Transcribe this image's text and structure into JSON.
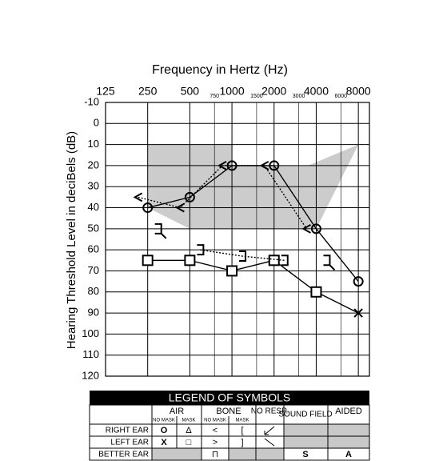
{
  "chart_data": {
    "type": "audiogram",
    "title": "Frequency in Hertz (Hz)",
    "y_label": "Hearing Threshold Level in deciBels (dB)",
    "xscale": "log",
    "xlim": [
      125,
      9600
    ],
    "xticks": [
      125,
      250,
      500,
      1000,
      2000,
      4000,
      8000
    ],
    "minor_xticks": [
      750,
      1500,
      3000,
      6000
    ],
    "ylim": [
      -10,
      120
    ],
    "yticks": [
      -10,
      0,
      10,
      20,
      30,
      40,
      50,
      60,
      70,
      80,
      90,
      100,
      110,
      120
    ],
    "y_inverted": true,
    "grid": true,
    "shaded_region": {
      "color": "#cccccc",
      "x": [
        250,
        1000,
        1000,
        3500,
        8000,
        4000,
        500,
        250
      ],
      "y": [
        10,
        10,
        20,
        20,
        10,
        50,
        50,
        40
      ]
    },
    "series": [
      {
        "color": "#000000",
        "marker": "circle",
        "line": "solid",
        "offset": "center",
        "x": [
          250,
          500,
          1000,
          2000,
          4000,
          8000
        ],
        "values": [
          40,
          35,
          20,
          20,
          50,
          75
        ]
      },
      {
        "color": "#000000",
        "marker": "less-than",
        "line": "dotted",
        "offset": "left",
        "x": [
          250,
          500,
          1000,
          2000,
          4000
        ],
        "values": [
          35,
          40,
          20,
          20,
          50
        ]
      },
      {
        "color": "#000000",
        "markers": [
          "square",
          "square",
          "square",
          "square",
          "square",
          "cross"
        ],
        "line": "solid",
        "offset": "center",
        "x": [
          250,
          500,
          1000,
          2000,
          4000,
          8000
        ],
        "values": [
          65,
          65,
          70,
          65,
          80,
          90
        ]
      },
      {
        "color": "#000000",
        "marker": "bracket",
        "line": "dotted",
        "offset": "right",
        "x": [
          500,
          1000,
          2000
        ],
        "values": [
          60,
          63,
          65
        ]
      },
      {
        "color": "#000000",
        "marker": "bracket-no-response",
        "line": "none",
        "offset": "right",
        "x": [
          250,
          4000
        ],
        "values": [
          50,
          65
        ]
      }
    ]
  },
  "legend_table": {
    "title": "LEGEND OF SYMBOLS",
    "air": "AIR",
    "bone": "BONE",
    "no_resp": "NO RESP.",
    "sound_field": "SOUND FIELD",
    "aided": "AIDED",
    "air_no_mask": "NO MASK",
    "air_mask": "MASK",
    "bone_no_mask": "NO MASK",
    "bone_mask": "MASK",
    "rows": [
      {
        "label": "RIGHT EAR",
        "symbols": [
          "O",
          "Δ",
          "<",
          "["
        ]
      },
      {
        "label": "LEFT EAR",
        "symbols": [
          "X",
          "□",
          ">",
          "]"
        ]
      },
      {
        "label": "BETTER EAR",
        "bone_no_mask": "⊓",
        "sound_field": "S",
        "aided": "A"
      }
    ]
  }
}
